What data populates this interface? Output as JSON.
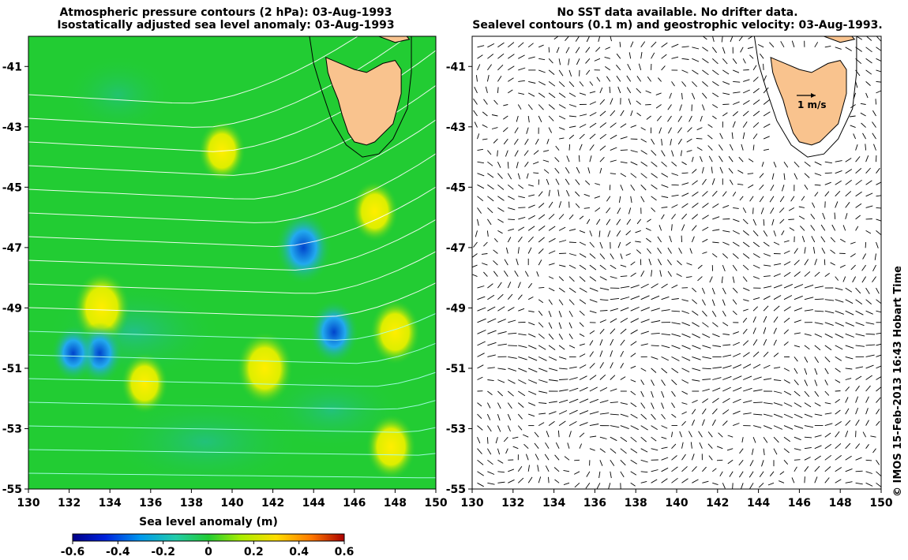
{
  "left_panel": {
    "title_line1": "Atmospheric pressure contours (2 hPa): 03-Aug-1993",
    "title_line2": "Isostatically adjusted sea level anomaly: 03-Aug-1993"
  },
  "right_panel": {
    "title_line1": "No SST data available.  No drifter data.",
    "title_line2": "Sealevel contours (0.1 m) and geostrophic velocity: 03-Aug-1993.",
    "scale_label": "1 m/s"
  },
  "axes": {
    "x_ticks": [
      "130",
      "132",
      "134",
      "136",
      "138",
      "140",
      "142",
      "144",
      "146",
      "148",
      "150"
    ],
    "y_ticks": [
      "-41",
      "-43",
      "-45",
      "-47",
      "-49",
      "-51",
      "-53",
      "-55"
    ],
    "x_range": [
      130,
      150
    ],
    "y_range": [
      -55,
      -40
    ]
  },
  "colorbar": {
    "label": "Sea level anomaly (m)",
    "ticks": [
      "-0.6",
      "-0.4",
      "-0.2",
      "0",
      "0.2",
      "0.4",
      "0.6"
    ],
    "range": [
      -0.6,
      0.6
    ]
  },
  "credit": "© IMOS 15-Feb-2013 16:43 Hobart Time",
  "colors": {
    "background_field": "#22cc33",
    "positive_anomaly": "#ffdd00",
    "negative_anomaly": "#0044cc",
    "land": "#f9c38e",
    "pressure_contours": "#ffffff"
  },
  "map_features": {
    "land": "Tasmania",
    "sea_level_anomaly_features": [
      {
        "type": "high",
        "lon": 133.6,
        "lat": -49.0,
        "value": 0.4
      },
      {
        "type": "high",
        "lon": 141.6,
        "lat": -51.0,
        "value": 0.4
      },
      {
        "type": "high",
        "lon": 148.0,
        "lat": -49.8,
        "value": 0.3
      },
      {
        "type": "high",
        "lon": 147.8,
        "lat": -53.6,
        "value": 0.3
      },
      {
        "type": "high",
        "lon": 135.7,
        "lat": -51.5,
        "value": 0.25
      },
      {
        "type": "high",
        "lon": 139.5,
        "lat": -43.8,
        "value": 0.25
      },
      {
        "type": "high",
        "lon": 147.0,
        "lat": -45.8,
        "value": 0.25
      },
      {
        "type": "low",
        "lon": 145.0,
        "lat": -49.8,
        "value": -0.3
      },
      {
        "type": "low",
        "lon": 143.5,
        "lat": -47.0,
        "value": -0.4
      },
      {
        "type": "low",
        "lon": 133.5,
        "lat": -50.5,
        "value": -0.25
      },
      {
        "type": "low",
        "lon": 132.2,
        "lat": -50.5,
        "value": -0.2
      }
    ]
  }
}
